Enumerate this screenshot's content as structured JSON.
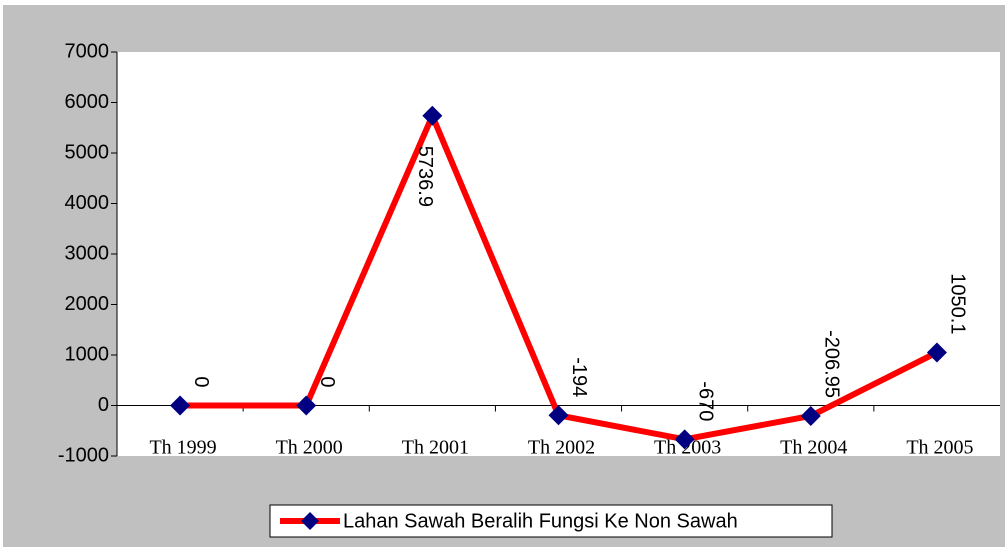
{
  "chart_data": {
    "type": "line",
    "categories": [
      "Th 1999",
      "Th 2000",
      "Th 2001",
      "Th 2002",
      "Th 2003",
      "Th 2004",
      "Th 2005"
    ],
    "series": [
      {
        "name": "Lahan Sawah Beralih Fungsi Ke Non Sawah",
        "color": "#ff0000",
        "marker_color": "#000080",
        "values": [
          0,
          0,
          5736.9,
          -194,
          -670,
          -206.95,
          1050.1
        ]
      }
    ],
    "ylim": [
      -1000,
      7000
    ],
    "yticks": [
      -1000,
      0,
      1000,
      2000,
      3000,
      4000,
      5000,
      6000,
      7000
    ],
    "grid": false,
    "legend": "bottom",
    "data_labels": true
  }
}
